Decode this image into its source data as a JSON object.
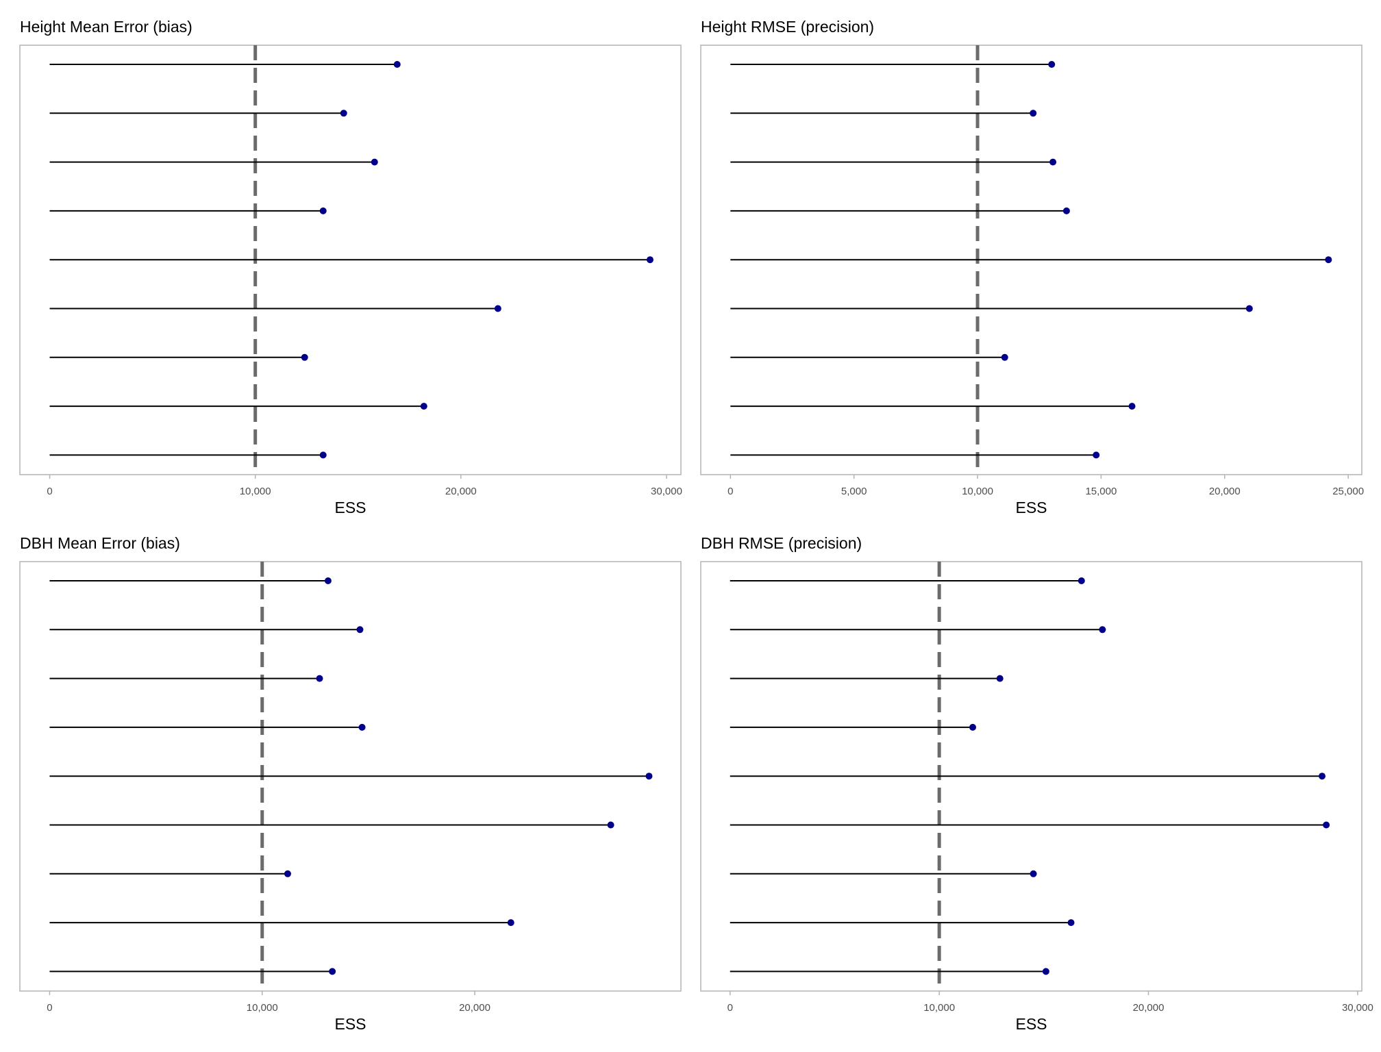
{
  "colors": {
    "point": "#00008b",
    "segment": "#000000",
    "threshold": "#6b6b6b",
    "panel_border": "#b3b3b3",
    "tick_text": "#4d4d4d"
  },
  "chart_data": [
    {
      "type": "lollipop",
      "title": "Height Mean Error (bias)",
      "xlabel": "ESS",
      "ylabel": "",
      "xlim": [
        -1450,
        30700
      ],
      "xticks": [
        0,
        10000,
        20000,
        30000
      ],
      "xtick_labels": [
        "0",
        "10,000",
        "20,000",
        "30,000"
      ],
      "threshold": 10000,
      "values": [
        16900,
        14300,
        15800,
        13300,
        29200,
        21800,
        12400,
        18200,
        13300
      ],
      "grid": false
    },
    {
      "type": "lollipop",
      "title": "Height RMSE (precision)",
      "xlabel": "ESS",
      "ylabel": "",
      "xlim": [
        -1200,
        25550
      ],
      "xticks": [
        0,
        5000,
        10000,
        15000,
        20000,
        25000
      ],
      "xtick_labels": [
        "0",
        "5,000",
        "10,000",
        "15,000",
        "20,000",
        "25,000"
      ],
      "threshold": 10000,
      "values": [
        13000,
        12250,
        13050,
        13600,
        24200,
        21000,
        11100,
        16250,
        14800
      ],
      "grid": false
    },
    {
      "type": "lollipop",
      "title": "DBH Mean Error (bias)",
      "xlabel": "ESS",
      "ylabel": "",
      "xlim": [
        -1400,
        29700
      ],
      "xticks": [
        0,
        10000,
        20000
      ],
      "xtick_labels": [
        "0",
        "10,000",
        "20,000"
      ],
      "threshold": 10000,
      "values": [
        13100,
        14600,
        12700,
        14700,
        28200,
        26400,
        11200,
        21700,
        13300
      ],
      "grid": false
    },
    {
      "type": "lollipop",
      "title": "DBH RMSE (precision)",
      "xlabel": "ESS",
      "ylabel": "",
      "xlim": [
        -1400,
        30200
      ],
      "xticks": [
        0,
        10000,
        20000,
        30000
      ],
      "xtick_labels": [
        "0",
        "10,000",
        "20,000",
        "30,000"
      ],
      "threshold": 10000,
      "values": [
        16800,
        17800,
        12900,
        11600,
        28300,
        28500,
        14500,
        16300,
        15100
      ],
      "grid": false
    }
  ]
}
